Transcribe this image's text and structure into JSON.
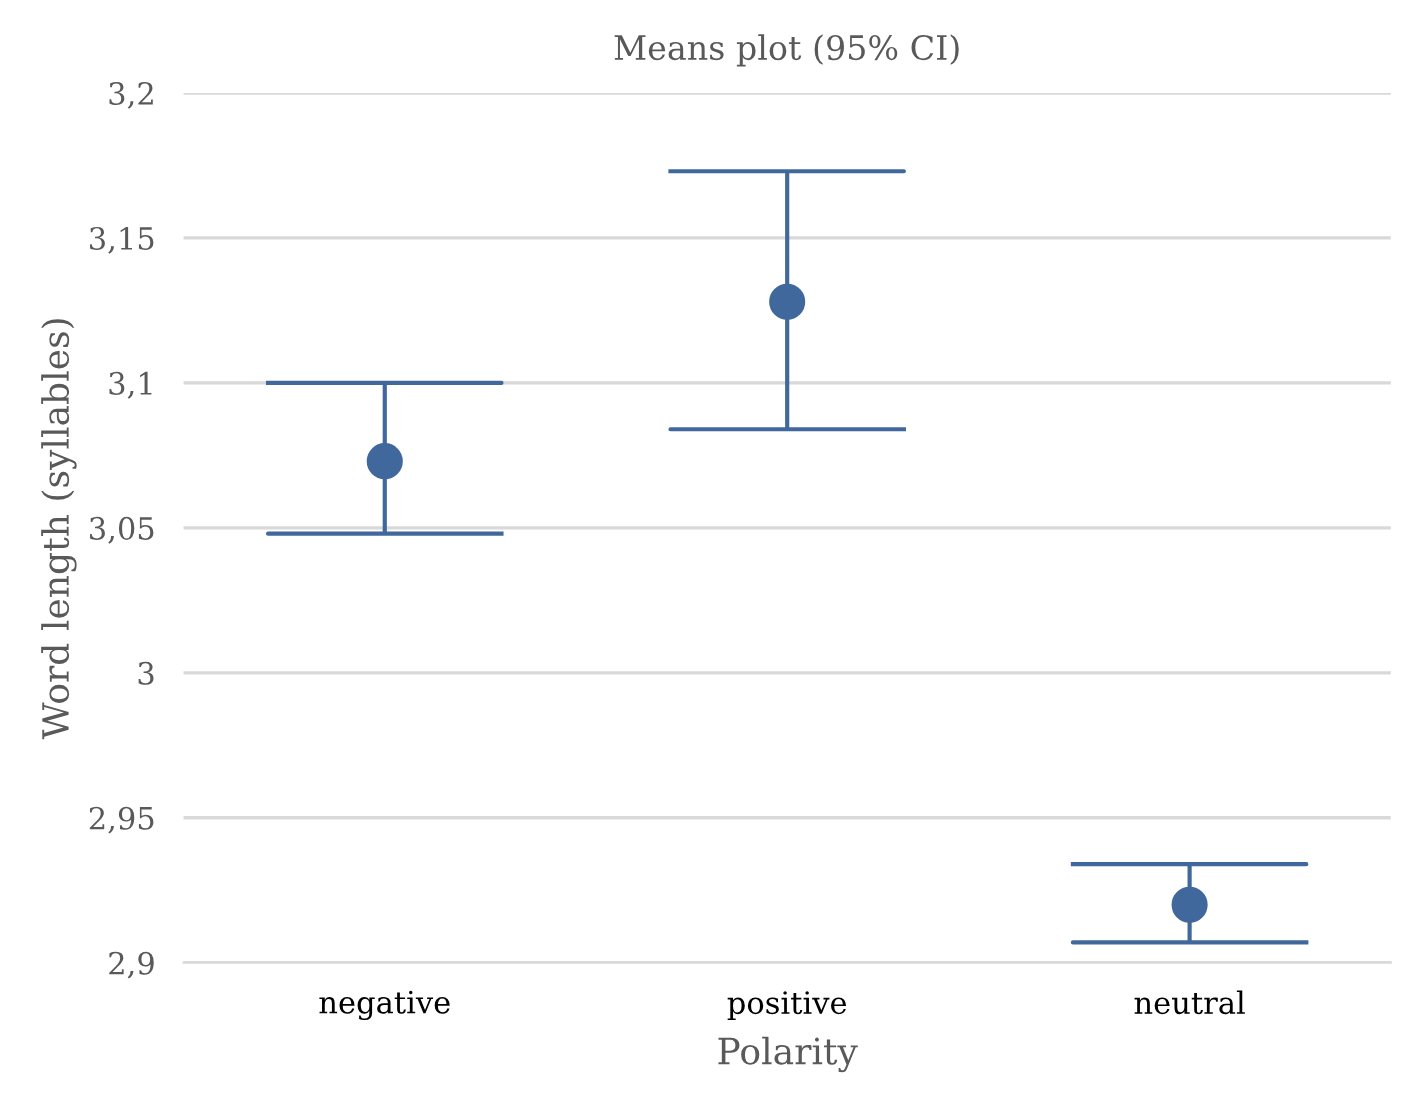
{
  "chart_data": {
    "type": "scatter",
    "title": "Means plot (95% CI)",
    "xlabel": "Polarity",
    "ylabel": "Word length (syllables)",
    "categories": [
      "negative",
      "positive",
      "neutral"
    ],
    "color": "#41689c",
    "values": [
      3.073,
      3.128,
      2.92
    ],
    "errors": [
      [
        3.048,
        3.1
      ],
      [
        3.084,
        3.173
      ],
      [
        2.907,
        2.934
      ]
    ],
    "ylim": [
      2.9,
      3.2
    ],
    "yticks": [
      {
        "value": 2.9,
        "label": "2,9"
      },
      {
        "value": 2.95,
        "label": "2,95"
      },
      {
        "value": 3,
        "label": "3"
      },
      {
        "value": 3.05,
        "label": "3,05"
      },
      {
        "value": 3.1,
        "label": "3,1"
      },
      {
        "value": 3.15,
        "label": "3,15"
      },
      {
        "value": 3.2,
        "label": "3,2"
      }
    ],
    "grid": "y",
    "marker": "circle",
    "legend": false
  }
}
